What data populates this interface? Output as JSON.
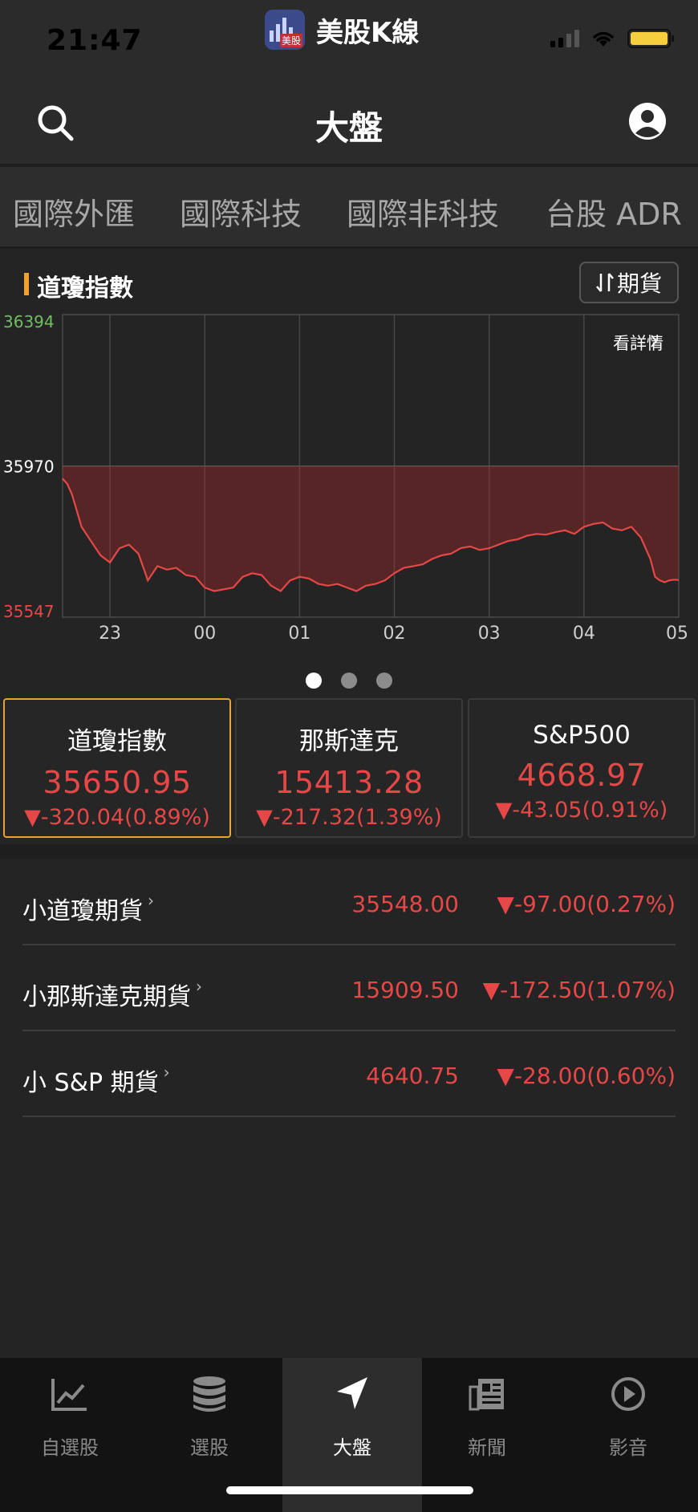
{
  "status_bar": {
    "time": "21:47",
    "app_name": "美股K線",
    "app_logo_tag": "美股"
  },
  "nav": {
    "title": "大盤",
    "search_icon": "search-icon",
    "profile_icon": "user-icon"
  },
  "category_tabs": [
    "國際外匯",
    "國際科技",
    "國際非科技",
    "台股 ADR"
  ],
  "chart": {
    "title": "道瓊指數",
    "futures_button": "期貨",
    "detail_link": "看詳情",
    "accent_color": "#f0a030"
  },
  "chart_data": {
    "type": "line",
    "title": "道瓊指數",
    "y_ticks": [
      "36394",
      "35970",
      "35547"
    ],
    "ylim": [
      35547,
      36394
    ],
    "reference_value": 35970,
    "x_ticks": [
      "23",
      "00",
      "01",
      "02",
      "03",
      "04",
      "05"
    ],
    "x": [
      22.5,
      22.55,
      22.6,
      22.7,
      22.8,
      22.9,
      23.0,
      23.1,
      23.2,
      23.3,
      23.4,
      23.5,
      23.6,
      23.7,
      23.8,
      23.9,
      24.0,
      24.1,
      24.2,
      24.3,
      24.4,
      24.5,
      24.6,
      24.7,
      24.8,
      24.9,
      25.0,
      25.1,
      25.2,
      25.3,
      25.4,
      25.5,
      25.6,
      25.7,
      25.8,
      25.9,
      26.0,
      26.1,
      26.2,
      26.3,
      26.4,
      26.5,
      26.6,
      26.7,
      26.8,
      26.9,
      27.0,
      27.1,
      27.2,
      27.3,
      27.4,
      27.5,
      27.6,
      27.7,
      27.8,
      27.9,
      28.0,
      28.1,
      28.2,
      28.3,
      28.4,
      28.5,
      28.6,
      28.7,
      28.75,
      28.8,
      28.85,
      28.9,
      28.95,
      29.0
    ],
    "values": [
      35935,
      35920,
      35890,
      35800,
      35760,
      35720,
      35700,
      35740,
      35750,
      35725,
      35650,
      35690,
      35680,
      35685,
      35665,
      35660,
      35630,
      35620,
      35625,
      35630,
      35660,
      35670,
      35665,
      35635,
      35620,
      35650,
      35660,
      35655,
      35640,
      35635,
      35640,
      35630,
      35620,
      35635,
      35640,
      35650,
      35670,
      35685,
      35690,
      35695,
      35710,
      35720,
      35725,
      35740,
      35745,
      35735,
      35740,
      35750,
      35760,
      35765,
      35775,
      35780,
      35778,
      35785,
      35790,
      35780,
      35800,
      35808,
      35812,
      35795,
      35790,
      35800,
      35770,
      35710,
      35660,
      35650,
      35645,
      35650,
      35652,
      35651
    ],
    "grid": true,
    "line_color": "#e64747"
  },
  "pagination": {
    "count": 3,
    "active": 0
  },
  "index_cards": [
    {
      "name": "道瓊指數",
      "price": "35650.95",
      "change": "▼-320.04(0.89%)"
    },
    {
      "name": "那斯達克",
      "price": "15413.28",
      "change": "▼-217.32(1.39%)"
    },
    {
      "name": "S&P500",
      "price": "4668.97",
      "change": "▼-43.05(0.91%)"
    }
  ],
  "futures": [
    {
      "name": "小道瓊期貨",
      "price": "35548.00",
      "change": "▼-97.00(0.27%)"
    },
    {
      "name": "小那斯達克期貨",
      "price": "15909.50",
      "change": "▼-172.50(1.07%)"
    },
    {
      "name": "小 S&P 期貨",
      "price": "4640.75",
      "change": "▼-28.00(0.60%)"
    }
  ],
  "tab_bar": [
    {
      "label": "自選股",
      "icon": "chart-line-icon"
    },
    {
      "label": "選股",
      "icon": "database-icon"
    },
    {
      "label": "大盤",
      "icon": "navigation-arrow-icon"
    },
    {
      "label": "新聞",
      "icon": "newspaper-icon"
    },
    {
      "label": "影音",
      "icon": "play-circle-icon"
    }
  ],
  "colors": {
    "down": "#e64747",
    "up": "#4caf50",
    "selected_border": "#e5a43a",
    "background": "#242424"
  }
}
